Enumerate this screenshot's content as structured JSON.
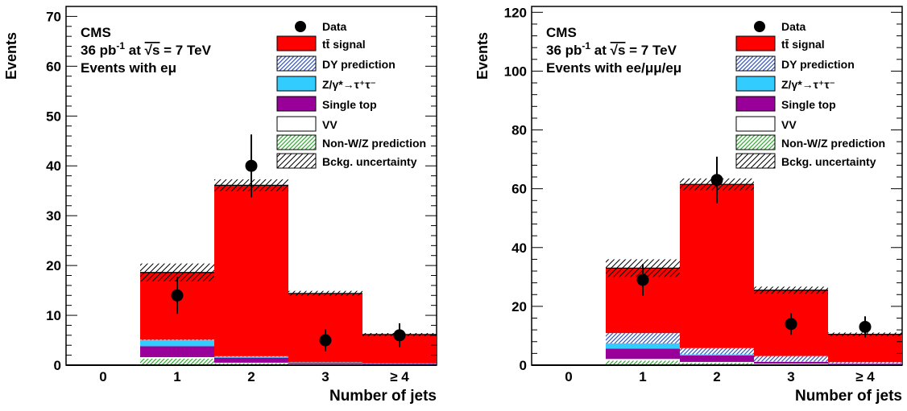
{
  "colors": {
    "tt": "#ff0000",
    "dy": "#5b7fd6",
    "ztautau": "#33ccff",
    "singletop": "#990099",
    "vv": "#ffffff",
    "nonwz": "#44aa44",
    "data": "#000000"
  },
  "chart_data": [
    {
      "type": "bar",
      "stacked": true,
      "ylabel": "Events",
      "xlabel": "Number of jets",
      "ylim": [
        0,
        72
      ],
      "yticks": [
        0,
        10,
        20,
        30,
        40,
        50,
        60,
        70
      ],
      "categories": [
        "0",
        "1",
        "2",
        "3",
        "≥ 4"
      ],
      "text": {
        "cms": "CMS",
        "lumi_pre": "36 pb",
        "lumi_exp": "-1",
        "lumi_mid": " at ",
        "sqrt": "√s",
        "energy": " =  7 TeV",
        "selection": "Events with eμ"
      },
      "legend": {
        "position": "top-right",
        "entries": [
          "Data",
          "tt̄ signal",
          "DY prediction",
          "Z/γ*→τ⁺τ⁻",
          "Single top",
          "VV",
          "Non-W/Z prediction",
          "Bckg. uncertainty"
        ]
      },
      "series": [
        {
          "name": "Non-W/Z prediction",
          "key": "nonwz",
          "values": [
            0,
            1.3,
            0.4,
            0.2,
            0.1
          ]
        },
        {
          "name": "VV",
          "key": "vv",
          "values": [
            0,
            0.3,
            0.1,
            0.05,
            0.05
          ]
        },
        {
          "name": "Single top",
          "key": "singletop",
          "values": [
            0,
            2.2,
            1.0,
            0.25,
            0.1
          ]
        },
        {
          "name": "Z/γ*→τ⁺τ⁻",
          "key": "ztautau",
          "values": [
            0,
            1.2,
            0.2,
            0.05,
            0.05
          ]
        },
        {
          "name": "DY prediction",
          "key": "dy",
          "values": [
            0,
            0.1,
            0.1,
            0.05,
            0.05
          ]
        },
        {
          "name": "tt̄ signal",
          "key": "tt",
          "values": [
            0,
            13.5,
            34.3,
            13.8,
            5.8
          ]
        }
      ],
      "uncertainty": [
        0,
        1.8,
        1.2,
        0.5,
        0.3
      ],
      "data": {
        "values": [
          0,
          14,
          40,
          5,
          6
        ],
        "err_lo": [
          0,
          3.7,
          6.3,
          2.2,
          2.4
        ],
        "err_hi": [
          0,
          3.7,
          6.3,
          2.2,
          2.4
        ]
      }
    },
    {
      "type": "bar",
      "stacked": true,
      "ylabel": "Events",
      "xlabel": "Number of jets",
      "ylim": [
        0,
        122
      ],
      "yticks": [
        0,
        20,
        40,
        60,
        80,
        100,
        120
      ],
      "categories": [
        "0",
        "1",
        "2",
        "3",
        "≥ 4"
      ],
      "text": {
        "cms": "CMS",
        "lumi_pre": "36 pb",
        "lumi_exp": "-1",
        "lumi_mid": " at ",
        "sqrt": "√s",
        "energy": " =  7 TeV",
        "selection": "Events with ee/μμ/eμ"
      },
      "legend": {
        "position": "top-right",
        "entries": [
          "Data",
          "tt̄ signal",
          "DY prediction",
          "Z/γ*→τ⁺τ⁻",
          "Single top",
          "VV",
          "Non-W/Z prediction",
          "Bckg. uncertainty"
        ]
      },
      "series": [
        {
          "name": "Non-W/Z prediction",
          "key": "nonwz",
          "values": [
            0,
            1.5,
            0.8,
            0.3,
            0.2
          ]
        },
        {
          "name": "VV",
          "key": "vv",
          "values": [
            0,
            0.6,
            0.3,
            0.2,
            0.1
          ]
        },
        {
          "name": "Single top",
          "key": "singletop",
          "values": [
            0,
            3.5,
            2.2,
            0.6,
            0.2
          ]
        },
        {
          "name": "Z/γ*→τ⁺τ⁻",
          "key": "ztautau",
          "values": [
            0,
            1.8,
            0.4,
            0.1,
            0.1
          ]
        },
        {
          "name": "DY prediction",
          "key": "dy",
          "values": [
            0,
            3.5,
            2.1,
            1.9,
            0.4
          ]
        },
        {
          "name": "tt̄ signal",
          "key": "tt",
          "values": [
            0,
            22.1,
            55.7,
            22.4,
            9.5
          ]
        }
      ],
      "uncertainty": [
        0,
        3.0,
        2.0,
        1.2,
        0.6
      ],
      "data": {
        "values": [
          0,
          29,
          63,
          14,
          13
        ],
        "err_lo": [
          0,
          5.4,
          7.9,
          3.7,
          3.6
        ],
        "err_hi": [
          0,
          5.4,
          7.9,
          3.7,
          3.6
        ]
      }
    }
  ]
}
